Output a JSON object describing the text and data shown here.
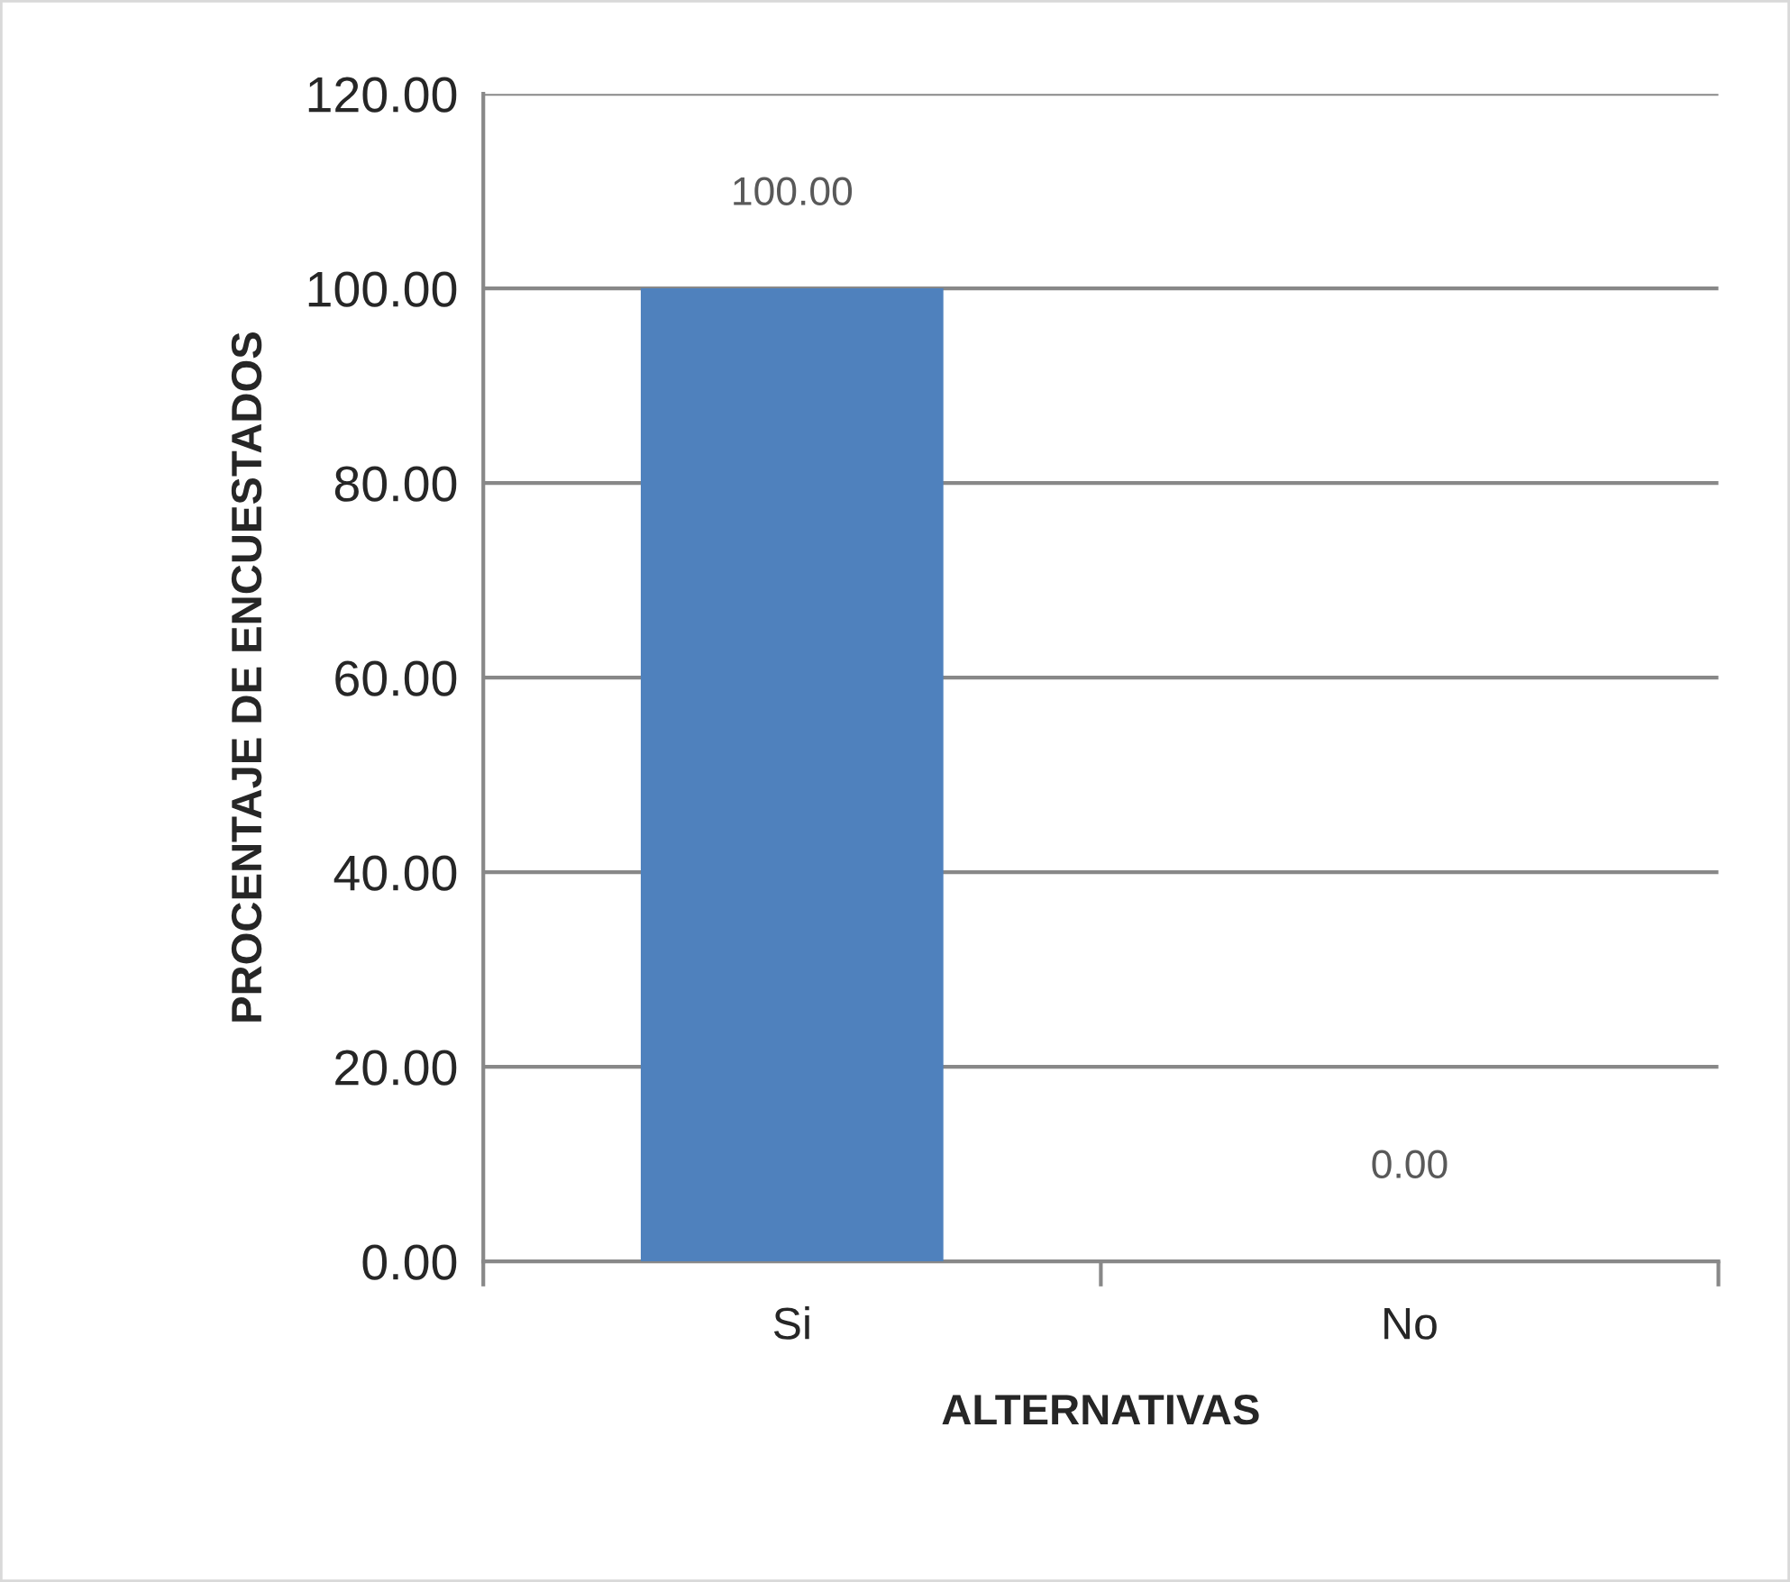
{
  "chart_data": {
    "type": "bar",
    "xlabel": "ALTERNATIVAS",
    "ylabel": "PROCENTAJE DE ENCUESTADOS",
    "categories": [
      "Si",
      "No"
    ],
    "series": [
      {
        "color": "#4f81bd",
        "values": [
          100,
          0
        ],
        "value_labels": [
          "100.00",
          "0.00"
        ]
      }
    ],
    "ylim": [
      0,
      120
    ],
    "yticks": [
      {
        "value": 0,
        "label": "0.00"
      },
      {
        "value": 20,
        "label": "20.00"
      },
      {
        "value": 40,
        "label": "40.00"
      },
      {
        "value": 60,
        "label": "60.00"
      },
      {
        "value": 80,
        "label": "80.00"
      },
      {
        "value": 100,
        "label": "100.00"
      },
      {
        "value": 120,
        "label": "120.00"
      }
    ],
    "grid": "y",
    "legend": false
  }
}
